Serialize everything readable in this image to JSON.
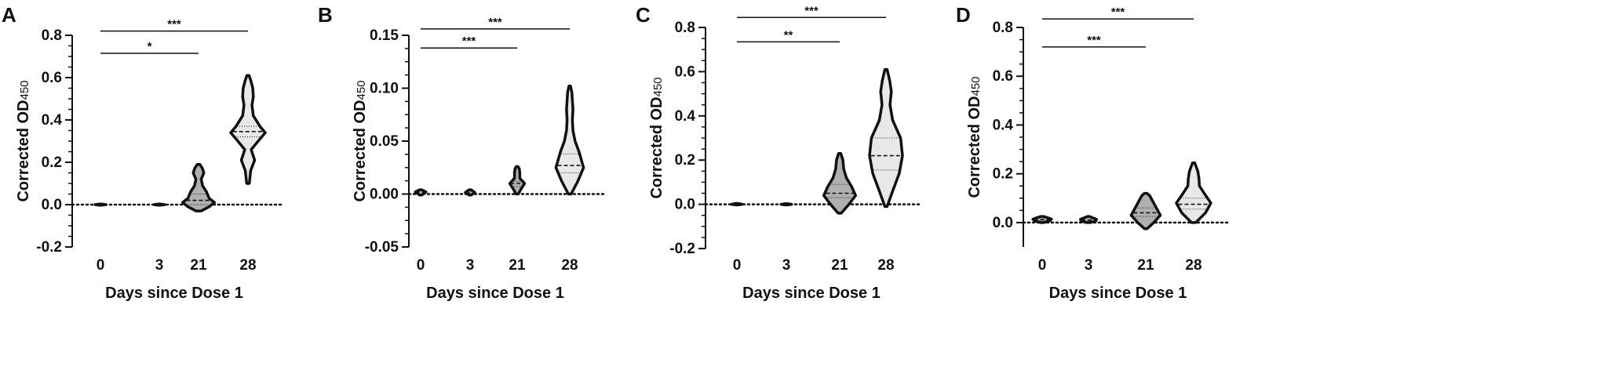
{
  "chart_data": [
    {
      "type": "violin",
      "panel": "A",
      "xlabel": "Days since Dose 1",
      "ylabel": "Corrected OD",
      "ylabel_sub": "450",
      "categories": [
        "0",
        "3",
        "21",
        "28"
      ],
      "ylim": [
        -0.2,
        0.8
      ],
      "yticks": [
        -0.2,
        0.0,
        0.2,
        0.4,
        0.6,
        0.8
      ],
      "ytick_labels": [
        "-0.2",
        "0.0",
        "0.2",
        "0.4",
        "0.6",
        "0.8"
      ],
      "reference_line": 0.0,
      "groups": [
        {
          "category": "0",
          "min": -0.003,
          "max": 0.003,
          "q1": -0.001,
          "median": 0.0,
          "q3": 0.001,
          "fill": "#c8c8c8",
          "profile": [
            [
              -0.003,
              0.004
            ],
            [
              0.0,
              0.02
            ],
            [
              0.003,
              0.004
            ]
          ]
        },
        {
          "category": "3",
          "min": -0.003,
          "max": 0.003,
          "q1": -0.001,
          "median": 0.0,
          "q3": 0.001,
          "fill": "#c8c8c8",
          "profile": [
            [
              -0.003,
              0.004
            ],
            [
              0.0,
              0.02
            ],
            [
              0.003,
              0.004
            ]
          ]
        },
        {
          "category": "21",
          "min": -0.03,
          "max": 0.19,
          "q1": 0.0,
          "median": 0.02,
          "q3": 0.05,
          "fill": "#b0b0b0",
          "profile": [
            [
              -0.03,
              0.01
            ],
            [
              -0.01,
              0.04
            ],
            [
              0.01,
              0.06
            ],
            [
              0.03,
              0.04
            ],
            [
              0.06,
              0.03
            ],
            [
              0.09,
              0.015
            ],
            [
              0.12,
              0.01
            ],
            [
              0.15,
              0.02
            ],
            [
              0.17,
              0.015
            ],
            [
              0.19,
              0.005
            ]
          ]
        },
        {
          "category": "28",
          "min": 0.1,
          "max": 0.61,
          "q1": 0.32,
          "median": 0.345,
          "q3": 0.37,
          "fill": "#e8e8e8",
          "profile": [
            [
              0.1,
              0.005
            ],
            [
              0.16,
              0.01
            ],
            [
              0.21,
              0.025
            ],
            [
              0.26,
              0.012
            ],
            [
              0.31,
              0.045
            ],
            [
              0.34,
              0.065
            ],
            [
              0.37,
              0.045
            ],
            [
              0.42,
              0.02
            ],
            [
              0.47,
              0.015
            ],
            [
              0.51,
              0.02
            ],
            [
              0.55,
              0.018
            ],
            [
              0.58,
              0.012
            ],
            [
              0.61,
              0.004
            ]
          ]
        }
      ],
      "significance": [
        {
          "from": "0",
          "to": "21",
          "y": 0.715,
          "label": "*"
        },
        {
          "from": "0",
          "to": "28",
          "y": 0.82,
          "label": "***"
        }
      ]
    },
    {
      "type": "violin",
      "panel": "B",
      "xlabel": "Days since Dose 1",
      "ylabel": "Corrected OD",
      "ylabel_sub": "450",
      "categories": [
        "0",
        "3",
        "21",
        "28"
      ],
      "ylim": [
        -0.05,
        0.15
      ],
      "yticks": [
        -0.05,
        0.0,
        0.05,
        0.1,
        0.15
      ],
      "ytick_labels": [
        "-0.05",
        "0.00",
        "0.05",
        "0.10",
        "0.15"
      ],
      "reference_line": 0.0,
      "groups": [
        {
          "category": "0",
          "min": -0.001,
          "max": 0.004,
          "q1": 0.001,
          "median": 0.002,
          "q3": 0.003,
          "fill": "#c8c8c8",
          "profile": [
            [
              -0.001,
              0.004
            ],
            [
              0.002,
              0.02
            ],
            [
              0.004,
              0.004
            ]
          ]
        },
        {
          "category": "3",
          "min": -0.001,
          "max": 0.004,
          "q1": 0.0,
          "median": 0.001,
          "q3": 0.002,
          "fill": "#c8c8c8",
          "profile": [
            [
              -0.001,
              0.004
            ],
            [
              0.0015,
              0.018
            ],
            [
              0.004,
              0.004
            ]
          ]
        },
        {
          "category": "21",
          "min": 0.0,
          "max": 0.026,
          "q1": 0.007,
          "median": 0.01,
          "q3": 0.012,
          "fill": "#b0b0b0",
          "profile": [
            [
              0.0,
              0.004
            ],
            [
              0.005,
              0.015
            ],
            [
              0.01,
              0.028
            ],
            [
              0.015,
              0.01
            ],
            [
              0.02,
              0.01
            ],
            [
              0.024,
              0.008
            ],
            [
              0.026,
              0.003
            ]
          ]
        },
        {
          "category": "28",
          "min": 0.0,
          "max": 0.102,
          "q1": 0.02,
          "median": 0.027,
          "q3": 0.038,
          "fill": "#e8e8e8",
          "profile": [
            [
              0.0,
              0.005
            ],
            [
              0.012,
              0.03
            ],
            [
              0.025,
              0.052
            ],
            [
              0.04,
              0.035
            ],
            [
              0.05,
              0.02
            ],
            [
              0.06,
              0.012
            ],
            [
              0.07,
              0.01
            ],
            [
              0.08,
              0.012
            ],
            [
              0.088,
              0.01
            ],
            [
              0.096,
              0.008
            ],
            [
              0.102,
              0.003
            ]
          ]
        }
      ],
      "significance": [
        {
          "from": "0",
          "to": "21",
          "y": 0.138,
          "label": "***"
        },
        {
          "from": "0",
          "to": "28",
          "y": 0.156,
          "label": "***"
        }
      ]
    },
    {
      "type": "violin",
      "panel": "C",
      "xlabel": "Days since Dose 1",
      "ylabel": "Corrected OD",
      "ylabel_sub": "450",
      "categories": [
        "0",
        "3",
        "21",
        "28"
      ],
      "ylim": [
        -0.2,
        0.8
      ],
      "yticks": [
        -0.2,
        0.0,
        0.2,
        0.4,
        0.6,
        0.8
      ],
      "ytick_labels": [
        "-0.2",
        "0.0",
        "0.2",
        "0.4",
        "0.6",
        "0.8"
      ],
      "reference_line": 0.0,
      "groups": [
        {
          "category": "0",
          "min": -0.003,
          "max": 0.004,
          "q1": -0.001,
          "median": 0.0,
          "q3": 0.001,
          "fill": "#c8c8c8",
          "profile": [
            [
              -0.003,
              0.004
            ],
            [
              0.0,
              0.02
            ],
            [
              0.004,
              0.004
            ]
          ]
        },
        {
          "category": "3",
          "min": -0.003,
          "max": 0.003,
          "q1": -0.001,
          "median": 0.0,
          "q3": 0.001,
          "fill": "#c8c8c8",
          "profile": [
            [
              -0.003,
              0.004
            ],
            [
              0.0,
              0.02
            ],
            [
              0.003,
              0.004
            ]
          ]
        },
        {
          "category": "21",
          "min": -0.04,
          "max": 0.23,
          "q1": 0.03,
          "median": 0.05,
          "q3": 0.09,
          "fill": "#b0b0b0",
          "profile": [
            [
              -0.04,
              0.006
            ],
            [
              0.0,
              0.035
            ],
            [
              0.04,
              0.06
            ],
            [
              0.08,
              0.045
            ],
            [
              0.12,
              0.025
            ],
            [
              0.16,
              0.015
            ],
            [
              0.2,
              0.012
            ],
            [
              0.23,
              0.004
            ]
          ]
        },
        {
          "category": "28",
          "min": -0.01,
          "max": 0.61,
          "q1": 0.155,
          "median": 0.22,
          "q3": 0.3,
          "fill": "#e8e8e8",
          "profile": [
            [
              -0.01,
              0.004
            ],
            [
              0.06,
              0.025
            ],
            [
              0.14,
              0.05
            ],
            [
              0.22,
              0.062
            ],
            [
              0.3,
              0.055
            ],
            [
              0.38,
              0.025
            ],
            [
              0.45,
              0.015
            ],
            [
              0.51,
              0.02
            ],
            [
              0.56,
              0.014
            ],
            [
              0.61,
              0.004
            ]
          ]
        }
      ],
      "significance": [
        {
          "from": "0",
          "to": "21",
          "y": 0.735,
          "label": "**"
        },
        {
          "from": "0",
          "to": "28",
          "y": 0.845,
          "label": "***"
        }
      ]
    },
    {
      "type": "violin",
      "panel": "D",
      "xlabel": "Days since Dose 1",
      "ylabel": "Corrected OD",
      "ylabel_sub": "450",
      "categories": [
        "0",
        "3",
        "21",
        "28"
      ],
      "ylim": [
        -0.1,
        0.8
      ],
      "yticks": [
        0.0,
        0.2,
        0.4,
        0.6,
        0.8
      ],
      "ytick_labels": [
        "0.0",
        "0.2",
        "0.4",
        "0.6",
        "0.8"
      ],
      "reference_line": 0.0,
      "groups": [
        {
          "category": "0",
          "min": 0.0,
          "max": 0.025,
          "q1": 0.008,
          "median": 0.012,
          "q3": 0.016,
          "fill": "#c8c8c8",
          "profile": [
            [
              0.0,
              0.006
            ],
            [
              0.008,
              0.03
            ],
            [
              0.014,
              0.035
            ],
            [
              0.02,
              0.02
            ],
            [
              0.025,
              0.005
            ]
          ]
        },
        {
          "category": "3",
          "min": 0.0,
          "max": 0.025,
          "q1": 0.006,
          "median": 0.01,
          "q3": 0.014,
          "fill": "#c8c8c8",
          "profile": [
            [
              0.0,
              0.006
            ],
            [
              0.007,
              0.028
            ],
            [
              0.013,
              0.03
            ],
            [
              0.02,
              0.015
            ],
            [
              0.025,
              0.004
            ]
          ]
        },
        {
          "category": "21",
          "min": -0.025,
          "max": 0.12,
          "q1": 0.025,
          "median": 0.04,
          "q3": 0.06,
          "fill": "#b0b0b0",
          "profile": [
            [
              -0.025,
              0.005
            ],
            [
              0.0,
              0.03
            ],
            [
              0.03,
              0.055
            ],
            [
              0.06,
              0.04
            ],
            [
              0.09,
              0.025
            ],
            [
              0.11,
              0.015
            ],
            [
              0.12,
              0.005
            ]
          ]
        },
        {
          "category": "28",
          "min": 0.0,
          "max": 0.245,
          "q1": 0.055,
          "median": 0.075,
          "q3": 0.1,
          "fill": "#e8e8e8",
          "profile": [
            [
              0.0,
              0.008
            ],
            [
              0.04,
              0.045
            ],
            [
              0.08,
              0.065
            ],
            [
              0.12,
              0.04
            ],
            [
              0.15,
              0.022
            ],
            [
              0.18,
              0.02
            ],
            [
              0.21,
              0.016
            ],
            [
              0.245,
              0.004
            ]
          ]
        }
      ],
      "significance": [
        {
          "from": "0",
          "to": "21",
          "y": 0.72,
          "label": "***"
        },
        {
          "from": "0",
          "to": "28",
          "y": 0.835,
          "label": "***"
        }
      ]
    }
  ]
}
